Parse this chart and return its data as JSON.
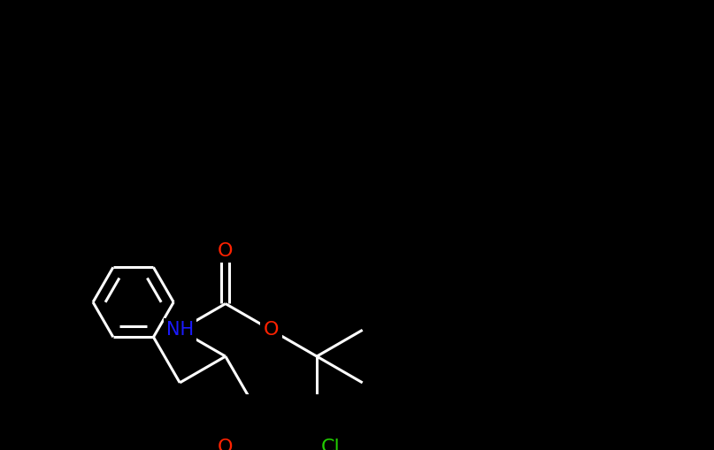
{
  "background_color": "#000000",
  "atom_colors": {
    "O": "#ff2200",
    "N": "#1a1aff",
    "Cl": "#22cc00",
    "H": "#ffffff"
  },
  "bond_color": "#ffffff",
  "bond_width": 2.2,
  "figsize": [
    8.07,
    5.09
  ],
  "dpi": 100,
  "xlim": [
    0,
    807
  ],
  "ylim": [
    0,
    509
  ]
}
